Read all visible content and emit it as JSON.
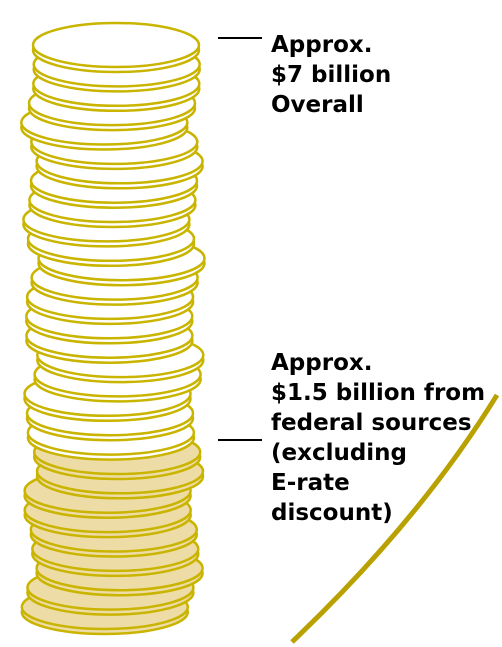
{
  "diagram": {
    "colors": {
      "coin_outline": "#C9B400",
      "coin_fill": "#FFFFFF",
      "coin_fill_federal": "#EEDCA6",
      "arc": "#B8A100",
      "leader_line": "#000000"
    },
    "coin_counts": {
      "total": 30,
      "federal": 9
    },
    "overall_label": {
      "lines": [
        "Approx.",
        "$7 billion",
        "Overall"
      ]
    },
    "federal_label": {
      "lines": [
        "Approx.",
        "$1.5 billion from",
        "federal sources",
        "(excluding",
        "E-rate",
        "discount)"
      ]
    }
  }
}
